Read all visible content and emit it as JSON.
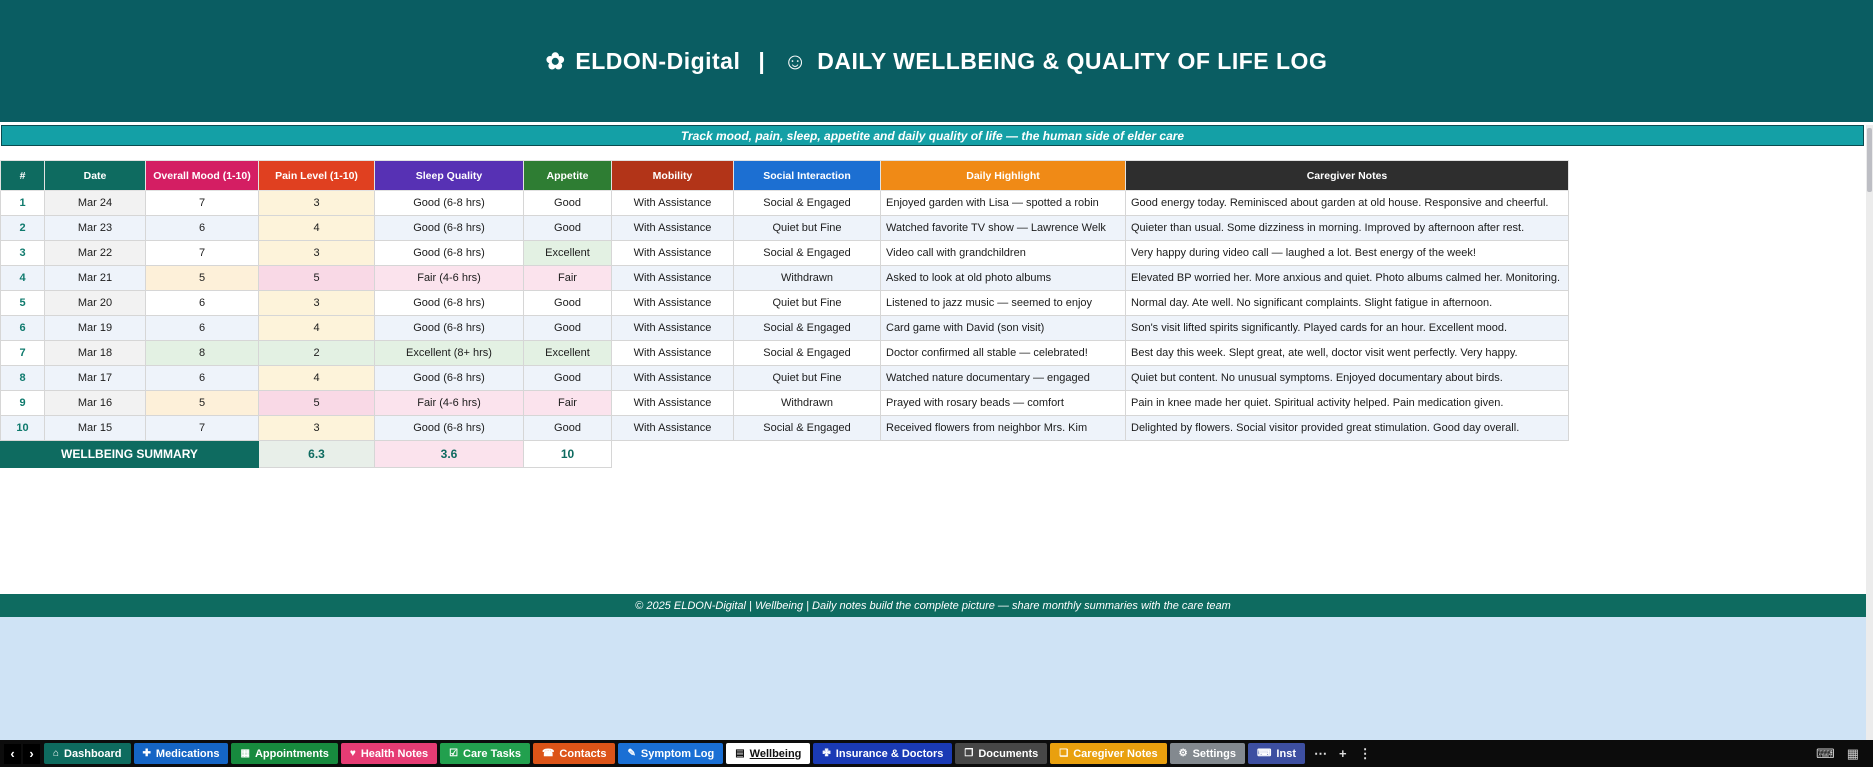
{
  "banner": {
    "leaf_icon": "✿",
    "brand": "ELDON-Digital",
    "separator": "|",
    "smiley_icon": "☺",
    "title": "DAILY WELLBEING & QUALITY OF LIFE LOG"
  },
  "subtitle": "Track mood, pain, sleep, appetite and daily quality of life — the human side of elder care",
  "table": {
    "headers": [
      {
        "label": "#",
        "color": "#0e6b60"
      },
      {
        "label": "Date",
        "color": "#0e6b60"
      },
      {
        "label": "Overall Mood (1-10)",
        "color": "#d41e63"
      },
      {
        "label": "Pain Level (1-10)",
        "color": "#e04020"
      },
      {
        "label": "Sleep Quality",
        "color": "#5731b4"
      },
      {
        "label": "Appetite",
        "color": "#2e7d33"
      },
      {
        "label": "Mobility",
        "color": "#b23418"
      },
      {
        "label": "Social Interaction",
        "color": "#1c6fd2"
      },
      {
        "label": "Daily Highlight",
        "color": "#f08a16"
      },
      {
        "label": "Caregiver Notes",
        "color": "#2e2e2e"
      }
    ],
    "rows": [
      {
        "num": "1",
        "date": "Mar 24",
        "mood": "7",
        "pain": "3",
        "sleep": "Good (6-8 hrs)",
        "appetite": "Good",
        "mobility": "With Assistance",
        "social": "Social & Engaged",
        "highlight": "Enjoyed garden with Lisa — spotted a robin",
        "notes": "Good energy today. Reminisced about garden at old house. Responsive and cheerful."
      },
      {
        "num": "2",
        "date": "Mar 23",
        "mood": "6",
        "pain": "4",
        "sleep": "Good (6-8 hrs)",
        "appetite": "Good",
        "mobility": "With Assistance",
        "social": "Quiet but Fine",
        "highlight": "Watched favorite TV show — Lawrence Welk",
        "notes": "Quieter than usual. Some dizziness in morning. Improved by afternoon after rest."
      },
      {
        "num": "3",
        "date": "Mar 22",
        "mood": "7",
        "pain": "3",
        "sleep": "Good (6-8 hrs)",
        "appetite": "Excellent",
        "mobility": "With Assistance",
        "social": "Social & Engaged",
        "highlight": "Video call with grandchildren",
        "notes": "Very happy during video call — laughed a lot. Best energy of the week!"
      },
      {
        "num": "4",
        "date": "Mar 21",
        "mood": "5",
        "pain": "5",
        "sleep": "Fair (4-6 hrs)",
        "appetite": "Fair",
        "mobility": "With Assistance",
        "social": "Withdrawn",
        "highlight": "Asked to look at old photo albums",
        "notes": "Elevated BP worried her. More anxious and quiet. Photo albums calmed her. Monitoring."
      },
      {
        "num": "5",
        "date": "Mar 20",
        "mood": "6",
        "pain": "3",
        "sleep": "Good (6-8 hrs)",
        "appetite": "Good",
        "mobility": "With Assistance",
        "social": "Quiet but Fine",
        "highlight": "Listened to jazz music — seemed to enjoy",
        "notes": "Normal day. Ate well. No significant complaints. Slight fatigue in afternoon."
      },
      {
        "num": "6",
        "date": "Mar 19",
        "mood": "6",
        "pain": "4",
        "sleep": "Good (6-8 hrs)",
        "appetite": "Good",
        "mobility": "With Assistance",
        "social": "Social & Engaged",
        "highlight": "Card game with David (son visit)",
        "notes": "Son's visit lifted spirits significantly. Played cards for an hour. Excellent mood."
      },
      {
        "num": "7",
        "date": "Mar 18",
        "mood": "8",
        "pain": "2",
        "sleep": "Excellent (8+ hrs)",
        "appetite": "Excellent",
        "mobility": "With Assistance",
        "social": "Social & Engaged",
        "highlight": "Doctor confirmed all stable — celebrated!",
        "notes": "Best day this week. Slept great, ate well, doctor visit went perfectly. Very happy."
      },
      {
        "num": "8",
        "date": "Mar 17",
        "mood": "6",
        "pain": "4",
        "sleep": "Good (6-8 hrs)",
        "appetite": "Good",
        "mobility": "With Assistance",
        "social": "Quiet but Fine",
        "highlight": "Watched nature documentary — engaged",
        "notes": "Quiet but content. No unusual symptoms. Enjoyed documentary about birds."
      },
      {
        "num": "9",
        "date": "Mar 16",
        "mood": "5",
        "pain": "5",
        "sleep": "Fair (4-6 hrs)",
        "appetite": "Fair",
        "mobility": "With Assistance",
        "social": "Withdrawn",
        "highlight": "Prayed with rosary beads — comfort",
        "notes": "Pain in knee made her quiet. Spiritual activity helped. Pain medication given."
      },
      {
        "num": "10",
        "date": "Mar 15",
        "mood": "7",
        "pain": "3",
        "sleep": "Good (6-8 hrs)",
        "appetite": "Good",
        "mobility": "With Assistance",
        "social": "Social & Engaged",
        "highlight": "Received flowers from neighbor Mrs. Kim",
        "notes": "Delighted by flowers. Social visitor provided great stimulation. Good day overall."
      }
    ],
    "cell_colors": {
      "mood": {
        "5": "#fdf0d9",
        "8": "#e3f1e3"
      },
      "pain": {
        "2": "#e3f1e3",
        "3": "#fdf3da",
        "4": "#fdf3da",
        "5": "#f9d9e6"
      },
      "sleep": {
        "Excellent (8+ hrs)": "#e3f1e3",
        "Fair (4-6 hrs)": "#fbe3ed"
      },
      "appetite": {
        "Excellent": "#e3f1e3",
        "Fair": "#fbe3ed"
      }
    },
    "summary": {
      "label": "WELLBEING SUMMARY",
      "values": [
        "6.3",
        "3.6",
        "10"
      ]
    }
  },
  "footer": "© 2025 ELDON-Digital | Wellbeing | Daily notes build the complete picture — share monthly summaries with the care team",
  "tabbar": {
    "nav_left": "‹",
    "nav_right": "›",
    "overflow": "⋯",
    "add": "+",
    "menu": "⋮",
    "right_icon_1": "⌨",
    "right_icon_2": "▦",
    "tabs": [
      {
        "id": "dashboard",
        "label": "Dashboard",
        "icon": "⌂",
        "icon_name": "home-icon",
        "color": "#0e6b5f",
        "active": false
      },
      {
        "id": "medications",
        "label": "Medications",
        "icon": "✚",
        "icon_name": "pill-icon",
        "color": "#1565c5",
        "active": false
      },
      {
        "id": "appointments",
        "label": "Appointments",
        "icon": "▦",
        "icon_name": "calendar-icon",
        "color": "#178a3e",
        "active": false
      },
      {
        "id": "health-notes",
        "label": "Health Notes",
        "icon": "♥",
        "icon_name": "heart-icon",
        "color": "#e63c74",
        "active": false
      },
      {
        "id": "care-tasks",
        "label": "Care Tasks",
        "icon": "☑",
        "icon_name": "checkbox-icon",
        "color": "#22a04e",
        "active": false
      },
      {
        "id": "contacts",
        "label": "Contacts",
        "icon": "☎",
        "icon_name": "phone-icon",
        "color": "#dc5418",
        "active": false
      },
      {
        "id": "symptom-log",
        "label": "Symptom Log",
        "icon": "✎",
        "icon_name": "notebook-icon",
        "color": "#1a6fd4",
        "active": false
      },
      {
        "id": "wellbeing",
        "label": "Wellbeing",
        "icon": "▤",
        "icon_name": "chart-icon",
        "color": "#ffffff",
        "active": true
      },
      {
        "id": "insurance-doctors",
        "label": "Insurance & Doctors",
        "icon": "✙",
        "icon_name": "hospital-icon",
        "color": "#1a3ab5",
        "active": false
      },
      {
        "id": "documents",
        "label": "Documents",
        "icon": "❐",
        "icon_name": "document-icon",
        "color": "#474747",
        "active": false
      },
      {
        "id": "caregiver-notes",
        "label": "Caregiver Notes",
        "icon": "❏",
        "icon_name": "clipboard-icon",
        "color": "#e9a00e",
        "active": false
      },
      {
        "id": "settings",
        "label": "Settings",
        "icon": "⚙",
        "icon_name": "gear-icon",
        "color": "#83898f",
        "active": false
      },
      {
        "id": "instructions",
        "label": "Inst",
        "icon": "⌨",
        "icon_name": "monitor-icon",
        "color": "#3d4fa1",
        "active": false
      }
    ]
  }
}
